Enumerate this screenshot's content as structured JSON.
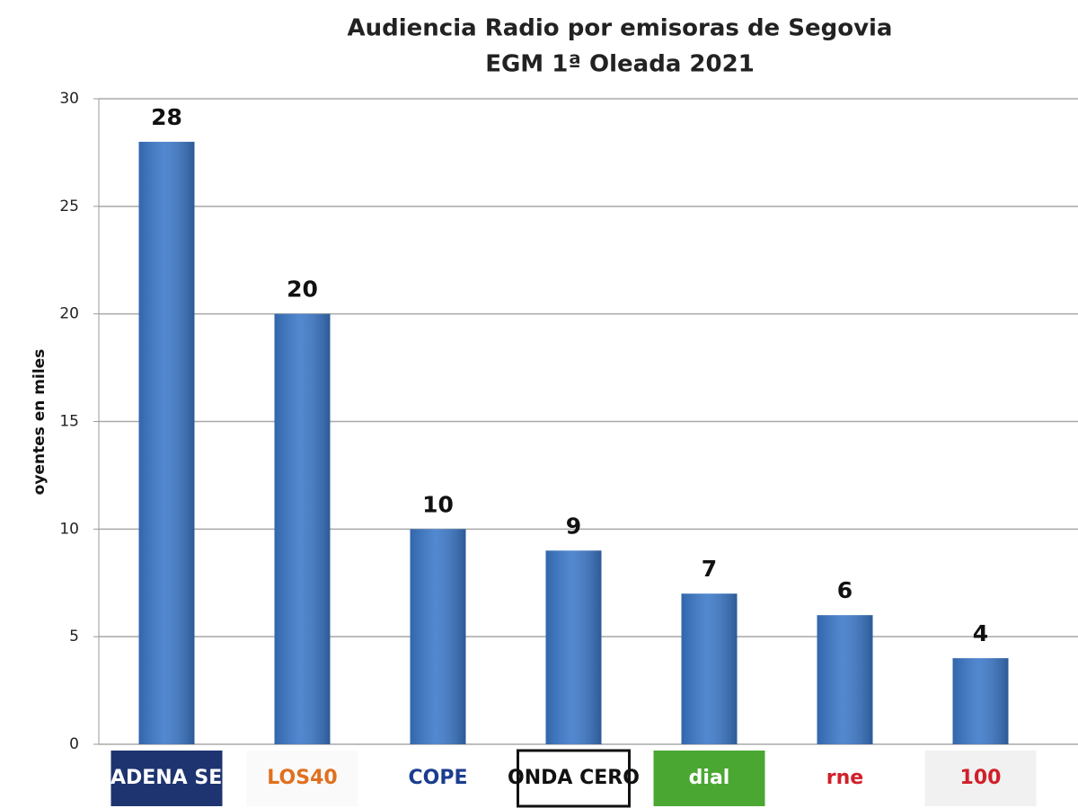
{
  "chart_data": {
    "type": "bar",
    "title": "Audiencia Radio por emisoras de Segovia",
    "subtitle": "EGM 1ª Oleada 2021",
    "y_label": "oyentes en miles",
    "categories": [
      "CADENA SER",
      "LOS40",
      "COPE",
      "ONDA CERO",
      "dial",
      "rne",
      "100"
    ],
    "values": [
      28,
      20,
      10,
      9,
      7,
      6,
      4
    ],
    "color": "#3b78c9",
    "ylim": [
      0,
      30
    ],
    "yticks": [
      0,
      5,
      10,
      15,
      20,
      25,
      30
    ],
    "grid": true
  }
}
